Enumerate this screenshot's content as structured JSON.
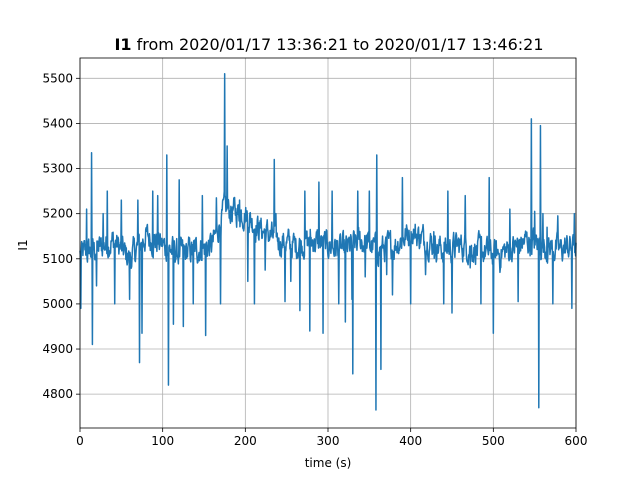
{
  "chart_data": {
    "type": "line",
    "title_bold": "I1",
    "title_rest": " from 2020/01/17 13:36:21 to 2020/01/17 13:46:21",
    "xlabel": "time (s)",
    "ylabel": "I1",
    "xlim": [
      0,
      600
    ],
    "ylim": [
      4725,
      5545
    ],
    "xticks": [
      0,
      100,
      200,
      300,
      400,
      500,
      600
    ],
    "yticks": [
      4800,
      4900,
      5000,
      5100,
      5200,
      5300,
      5400,
      5500
    ],
    "grid": true,
    "legend": "none",
    "line_color": "#1f77b4",
    "series": [
      {
        "sample_interval_s": 0.5,
        "base_profile": [
          [
            0,
            5110
          ],
          [
            20,
            5120
          ],
          [
            40,
            5140
          ],
          [
            60,
            5100
          ],
          [
            80,
            5150
          ],
          [
            100,
            5130
          ],
          [
            120,
            5110
          ],
          [
            140,
            5120
          ],
          [
            160,
            5130
          ],
          [
            175,
            5210
          ],
          [
            200,
            5200
          ],
          [
            215,
            5170
          ],
          [
            240,
            5140
          ],
          [
            260,
            5130
          ],
          [
            280,
            5140
          ],
          [
            300,
            5130
          ],
          [
            320,
            5120
          ],
          [
            340,
            5140
          ],
          [
            360,
            5120
          ],
          [
            380,
            5130
          ],
          [
            400,
            5160
          ],
          [
            420,
            5140
          ],
          [
            440,
            5120
          ],
          [
            460,
            5130
          ],
          [
            480,
            5120
          ],
          [
            500,
            5110
          ],
          [
            520,
            5120
          ],
          [
            540,
            5140
          ],
          [
            560,
            5130
          ],
          [
            580,
            5120
          ],
          [
            600,
            5130
          ]
        ],
        "spikes": [
          [
            1,
            4990
          ],
          [
            8,
            5210
          ],
          [
            14,
            5335
          ],
          [
            15,
            4910
          ],
          [
            20,
            5040
          ],
          [
            28,
            5200
          ],
          [
            33,
            5250
          ],
          [
            42,
            5000
          ],
          [
            50,
            5230
          ],
          [
            60,
            5010
          ],
          [
            70,
            5230
          ],
          [
            72,
            4870
          ],
          [
            75,
            4935
          ],
          [
            88,
            5250
          ],
          [
            94,
            5240
          ],
          [
            105,
            5330
          ],
          [
            107,
            4820
          ],
          [
            113,
            4955
          ],
          [
            120,
            5275
          ],
          [
            125,
            4950
          ],
          [
            137,
            5000
          ],
          [
            148,
            5240
          ],
          [
            152,
            4930
          ],
          [
            165,
            5235
          ],
          [
            170,
            5000
          ],
          [
            175,
            5510
          ],
          [
            178,
            5350
          ],
          [
            193,
            5230
          ],
          [
            203,
            5050
          ],
          [
            211,
            5000
          ],
          [
            217,
            5180
          ],
          [
            224,
            5075
          ],
          [
            235,
            5320
          ],
          [
            237,
            5200
          ],
          [
            248,
            5005
          ],
          [
            255,
            5050
          ],
          [
            266,
            4985
          ],
          [
            272,
            5250
          ],
          [
            278,
            4940
          ],
          [
            289,
            5270
          ],
          [
            294,
            4935
          ],
          [
            305,
            5250
          ],
          [
            313,
            5000
          ],
          [
            321,
            4960
          ],
          [
            329,
            5010
          ],
          [
            330,
            4845
          ],
          [
            336,
            5250
          ],
          [
            345,
            5060
          ],
          [
            350,
            5250
          ],
          [
            358,
            4765
          ],
          [
            359,
            5330
          ],
          [
            364,
            4855
          ],
          [
            371,
            5065
          ],
          [
            378,
            5020
          ],
          [
            390,
            5280
          ],
          [
            400,
            5000
          ],
          [
            405,
            5150
          ],
          [
            418,
            5065
          ],
          [
            428,
            5160
          ],
          [
            440,
            5000
          ],
          [
            445,
            5250
          ],
          [
            450,
            4980
          ],
          [
            466,
            5240
          ],
          [
            472,
            5080
          ],
          [
            485,
            5000
          ],
          [
            495,
            5280
          ],
          [
            500,
            4935
          ],
          [
            508,
            5070
          ],
          [
            520,
            5210
          ],
          [
            530,
            5005
          ],
          [
            546,
            5410
          ],
          [
            550,
            5205
          ],
          [
            555,
            4770
          ],
          [
            557,
            5395
          ],
          [
            560,
            5200
          ],
          [
            565,
            5170
          ],
          [
            572,
            5000
          ],
          [
            578,
            5195
          ],
          [
            585,
            5130
          ],
          [
            595,
            4990
          ],
          [
            598,
            5200
          ]
        ],
        "noise_amplitude": 35
      }
    ]
  }
}
